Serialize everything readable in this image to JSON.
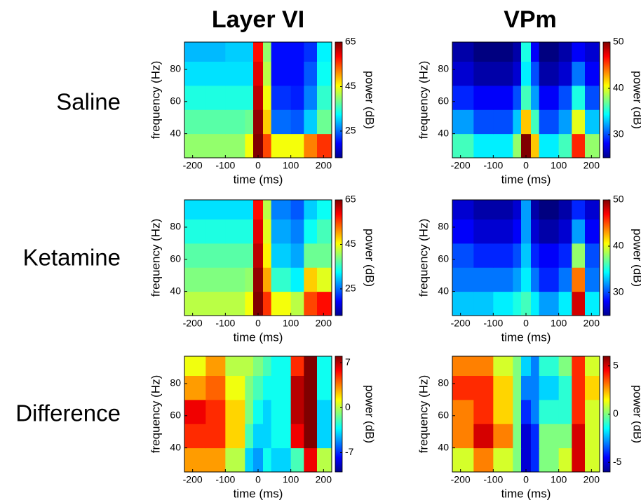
{
  "columns": [
    "Layer VI",
    "VPm"
  ],
  "rows": [
    "Saline",
    "Ketamine",
    "Difference"
  ],
  "chart_data": [
    {
      "type": "heatmap",
      "colormap": "jet",
      "xlabel": "time (ms)",
      "ylabel": "frequency (Hz)",
      "xlim": [
        -225,
        225
      ],
      "ylim": [
        25,
        97
      ],
      "xticks": [
        -200,
        -100,
        0,
        100,
        200
      ],
      "yticks": [
        40,
        60,
        80
      ],
      "xbins": [
        -225,
        -160,
        -100,
        -40,
        -15,
        15,
        40,
        100,
        140,
        180,
        225
      ],
      "ybins": [
        25,
        40,
        55,
        70,
        85,
        97
      ],
      "values": [
        [
          40,
          40,
          40,
          45,
          65,
          55,
          45,
          45,
          52,
          56
        ],
        [
          37,
          37,
          37,
          38,
          64,
          48,
          25,
          24,
          30,
          38
        ],
        [
          34,
          34,
          34,
          34,
          62,
          45,
          22,
          21,
          26,
          35
        ],
        [
          31,
          31,
          31,
          31,
          60,
          42,
          20,
          20,
          24,
          33
        ],
        [
          29,
          29,
          30,
          30,
          58,
          40,
          20,
          20,
          22,
          32
        ]
      ],
      "colorbar_label": "power (dB)",
      "clim": [
        13,
        65
      ],
      "cticks": [
        25,
        45,
        65
      ]
    },
    {
      "type": "heatmap",
      "colormap": "jet",
      "xlabel": "time (ms)",
      "ylabel": "frequency (Hz)",
      "xlim": [
        -225,
        225
      ],
      "ylim": [
        25,
        97
      ],
      "xticks": [
        -200,
        -100,
        0,
        100,
        200
      ],
      "yticks": [
        40,
        60,
        80
      ],
      "xbins": [
        -225,
        -160,
        -100,
        -40,
        -15,
        15,
        40,
        100,
        140,
        180,
        225
      ],
      "ybins": [
        25,
        40,
        55,
        70,
        85,
        97
      ],
      "values": [
        [
          36,
          34,
          34,
          38,
          50,
          42,
          34,
          36,
          46,
          38
        ],
        [
          32,
          30,
          30,
          33,
          42,
          36,
          30,
          32,
          40,
          33
        ],
        [
          29,
          28,
          28,
          30,
          36,
          32,
          28,
          30,
          35,
          30
        ],
        [
          27,
          26,
          26,
          27,
          34,
          30,
          26,
          27,
          31,
          28
        ],
        [
          26,
          25,
          25,
          26,
          35,
          28,
          25,
          26,
          28,
          27
        ]
      ],
      "colorbar_label": "power (dB)",
      "clim": [
        25,
        50
      ],
      "cticks": [
        30,
        40,
        50
      ]
    },
    {
      "type": "heatmap",
      "colormap": "jet",
      "xlabel": "time (ms)",
      "ylabel": "frequency (Hz)",
      "xlim": [
        -225,
        225
      ],
      "ylim": [
        25,
        97
      ],
      "xticks": [
        -200,
        -100,
        0,
        100,
        200
      ],
      "yticks": [
        40,
        60,
        80
      ],
      "xbins": [
        -225,
        -160,
        -100,
        -40,
        -15,
        15,
        40,
        100,
        140,
        180,
        225
      ],
      "ybins": [
        25,
        40,
        55,
        70,
        85,
        97
      ],
      "values": [
        [
          42,
          42,
          42,
          45,
          65,
          56,
          45,
          42,
          55,
          58
        ],
        [
          39,
          39,
          39,
          40,
          64,
          50,
          35,
          32,
          48,
          44
        ],
        [
          37,
          37,
          37,
          37,
          62,
          46,
          30,
          28,
          38,
          38
        ],
        [
          34,
          34,
          34,
          34,
          60,
          44,
          28,
          26,
          33,
          36
        ],
        [
          31,
          31,
          31,
          31,
          58,
          42,
          26,
          24,
          30,
          33
        ]
      ],
      "colorbar_label": "power (dB)",
      "clim": [
        13,
        65
      ],
      "cticks": [
        25,
        45,
        65
      ]
    },
    {
      "type": "heatmap",
      "colormap": "jet",
      "xlabel": "time (ms)",
      "ylabel": "frequency (Hz)",
      "xlim": [
        -225,
        225
      ],
      "ylim": [
        25,
        97
      ],
      "xticks": [
        -200,
        -100,
        0,
        100,
        200
      ],
      "yticks": [
        40,
        60,
        80
      ],
      "xbins": [
        -225,
        -160,
        -100,
        -40,
        -15,
        15,
        40,
        100,
        140,
        180,
        225
      ],
      "ybins": [
        25,
        40,
        55,
        70,
        85,
        97
      ],
      "values": [
        [
          33,
          33,
          34,
          35,
          36,
          34,
          32,
          34,
          48,
          34
        ],
        [
          31,
          31,
          31,
          32,
          34,
          31,
          29,
          31,
          44,
          31
        ],
        [
          30,
          29,
          29,
          30,
          33,
          29,
          28,
          29,
          38,
          30
        ],
        [
          28,
          27,
          27,
          28,
          32,
          27,
          26,
          27,
          32,
          28
        ],
        [
          27,
          26,
          26,
          27,
          32,
          26,
          25,
          26,
          29,
          27
        ]
      ],
      "colorbar_label": "power (dB)",
      "clim": [
        25,
        50
      ],
      "cticks": [
        30,
        40,
        50
      ]
    },
    {
      "type": "heatmap",
      "colormap": "jet",
      "xlabel": "time (ms)",
      "ylabel": "frequency (Hz)",
      "xlim": [
        -225,
        225
      ],
      "ylim": [
        25,
        97
      ],
      "xticks": [
        -200,
        -100,
        0,
        100,
        200
      ],
      "yticks": [
        40,
        60,
        80
      ],
      "xbins": [
        -225,
        -160,
        -100,
        -40,
        -15,
        15,
        40,
        100,
        140,
        180,
        225
      ],
      "ybins": [
        25,
        40,
        55,
        70,
        85,
        97
      ],
      "values": [
        [
          3,
          3,
          0,
          -4,
          -5,
          -3,
          -4,
          -2,
          6,
          0
        ],
        [
          5,
          5,
          2,
          -2,
          -4,
          -4,
          -3,
          6,
          8,
          -4
        ],
        [
          6,
          5,
          2,
          -1,
          -3,
          -4,
          -3,
          7,
          8,
          -4
        ],
        [
          3,
          4,
          1,
          -1,
          -2,
          -3,
          -3,
          7,
          8,
          -3
        ],
        [
          1,
          3,
          0,
          0,
          -1,
          -2,
          -3,
          5,
          8,
          -3
        ]
      ],
      "colorbar_label": "power (dB)",
      "clim": [
        -10,
        8
      ],
      "cticks": [
        -7,
        0,
        7
      ]
    },
    {
      "type": "heatmap",
      "colormap": "jet",
      "xlabel": "time (ms)",
      "ylabel": "frequency (Hz)",
      "xlim": [
        -225,
        225
      ],
      "ylim": [
        25,
        97
      ],
      "xticks": [
        -200,
        -100,
        0,
        100,
        200
      ],
      "yticks": [
        40,
        60,
        80
      ],
      "xbins": [
        -225,
        -160,
        -100,
        -40,
        -15,
        15,
        40,
        100,
        140,
        180,
        225
      ],
      "ybins": [
        25,
        40,
        55,
        70,
        85,
        97
      ],
      "values": [
        [
          1,
          3,
          1,
          0,
          -5,
          -4,
          0,
          1,
          5,
          1
        ],
        [
          3,
          5,
          3,
          0,
          -5,
          -4,
          0,
          0,
          5,
          1
        ],
        [
          3,
          4,
          2,
          0,
          -4,
          -3,
          -1,
          -1,
          4,
          1
        ],
        [
          4,
          4,
          2,
          0,
          -3,
          -3,
          -2,
          -1,
          4,
          2
        ],
        [
          3,
          3,
          1,
          0,
          -2,
          -3,
          -1,
          0,
          4,
          1
        ]
      ],
      "colorbar_label": "power (dB)",
      "clim": [
        -6,
        6
      ],
      "cticks": [
        -5,
        0,
        5
      ]
    }
  ]
}
